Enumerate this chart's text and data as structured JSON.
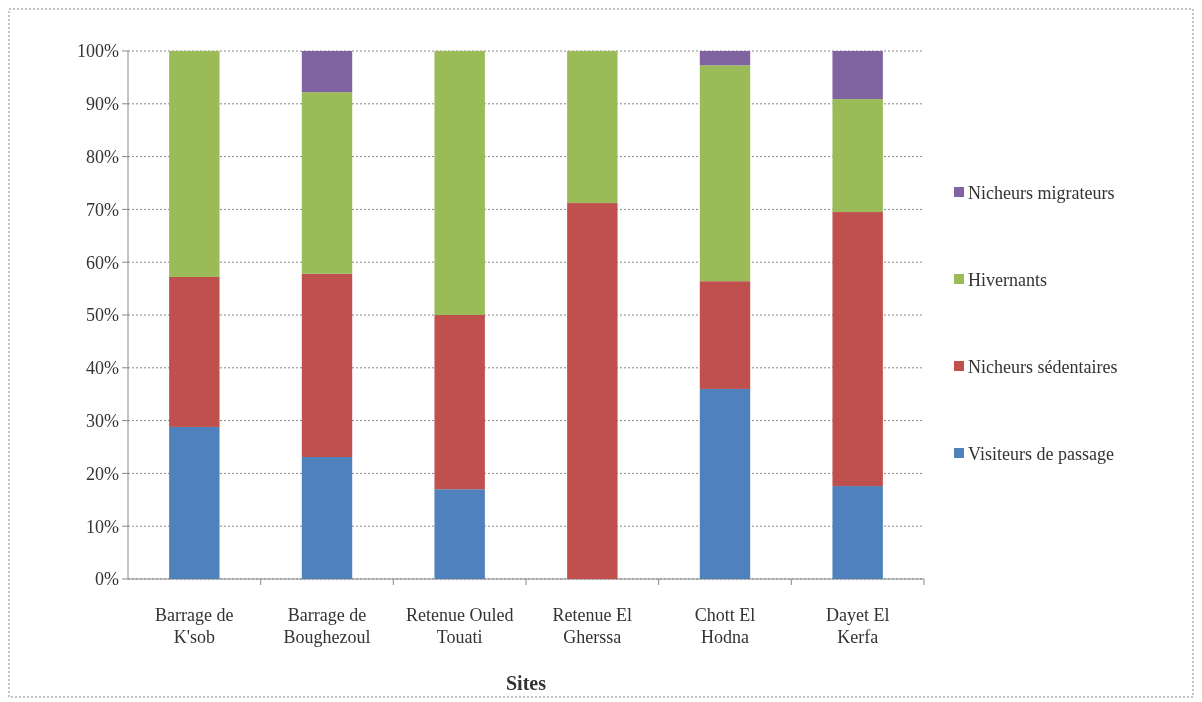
{
  "chart_data": {
    "type": "bar",
    "stacked": true,
    "xlabel": "Sites",
    "categories": [
      "Barrage de K'sob",
      "Barrage de Boughezoul",
      "Retenue Ouled Touati",
      "Retenue El Gherssa",
      "Chott El Hodna",
      "Dayet El Kerfa"
    ],
    "series": [
      {
        "name": "Visiteurs de passage",
        "color": "#4f81bd",
        "values": [
          28.8,
          23.1,
          17.0,
          0,
          36.0,
          17.6
        ]
      },
      {
        "name": "Nicheurs sédentaires",
        "color": "#c0504d",
        "values": [
          28.4,
          34.7,
          33.0,
          71.2,
          20.4,
          51.9
        ]
      },
      {
        "name": "Hivernants",
        "color": "#9bbb59",
        "values": [
          42.8,
          34.4,
          50.0,
          28.8,
          40.9,
          21.4
        ]
      },
      {
        "name": "Nicheurs migrateurs",
        "color": "#8064a2",
        "values": [
          0,
          7.8,
          0,
          0,
          2.7,
          9.1
        ]
      }
    ],
    "ylim": [
      0,
      100
    ],
    "yticks": [
      {
        "value": 0,
        "label": "0%"
      },
      {
        "value": 10,
        "label": "10%"
      },
      {
        "value": 20,
        "label": "20%"
      },
      {
        "value": 30,
        "label": "30%"
      },
      {
        "value": 40,
        "label": "40%"
      },
      {
        "value": 50,
        "label": "50%"
      },
      {
        "value": 60,
        "label": "60%"
      },
      {
        "value": 70,
        "label": "70%"
      },
      {
        "value": 80,
        "label": "80%"
      },
      {
        "value": 90,
        "label": "90%"
      },
      {
        "value": 100,
        "label": "100%"
      }
    ],
    "grid": "y",
    "legend": "right"
  }
}
